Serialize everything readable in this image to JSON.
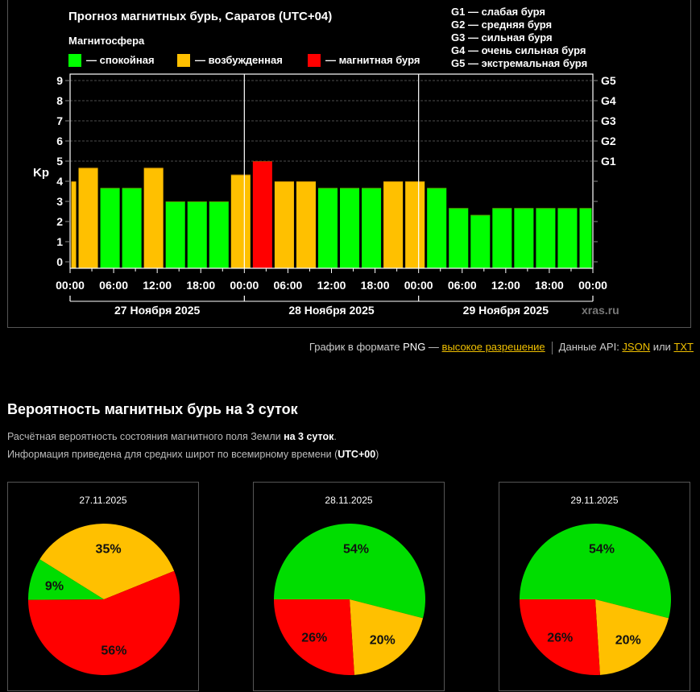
{
  "chart_data": [
    {
      "type": "bar",
      "title": "Прогноз магнитных бурь, Саратов (UTC+04)",
      "legend_title": "Магнитосфера",
      "legend": [
        {
          "label": "— спокойная",
          "color": "#00ff00"
        },
        {
          "label": "— возбужденная",
          "color": "#ffc000"
        },
        {
          "label": "— магнитная буря",
          "color": "#ff0000"
        }
      ],
      "g_legend": [
        "G1 — слабая буря",
        "G2 — средняя буря",
        "G3 — сильная буря",
        "G4 — очень сильная буря",
        "G5 — экстремальная буря"
      ],
      "ylabel": "Kp",
      "ylim": [
        0,
        9
      ],
      "yticks": [
        "0",
        "1",
        "2",
        "3",
        "4",
        "5",
        "6",
        "7",
        "8",
        "9"
      ],
      "right_ticks": [
        {
          "kp": 5,
          "label": "G1"
        },
        {
          "kp": 6,
          "label": "G2"
        },
        {
          "kp": 7,
          "label": "G3"
        },
        {
          "kp": 8,
          "label": "G4"
        },
        {
          "kp": 9,
          "label": "G5"
        }
      ],
      "xticks": [
        "00:00",
        "06:00",
        "12:00",
        "18:00",
        "00:00",
        "06:00",
        "12:00",
        "18:00",
        "00:00",
        "06:00",
        "12:00",
        "18:00",
        "00:00"
      ],
      "days": [
        "27 Ноября 2025",
        "28 Ноября 2025",
        "29 Ноября 2025"
      ],
      "hours_total": 72,
      "bar_hours": 3,
      "bar_offset_hours": -2,
      "values": [
        4,
        4.67,
        3.67,
        3.67,
        4.67,
        3,
        3,
        3,
        4.33,
        5,
        4,
        4,
        3.67,
        3.67,
        3.67,
        4,
        4,
        3.67,
        2.67,
        2.33,
        2.67,
        2.67,
        2.67,
        2.67,
        2.67
      ],
      "levels": [
        "e",
        "e",
        "q",
        "q",
        "e",
        "q",
        "q",
        "q",
        "e",
        "s",
        "e",
        "e",
        "q",
        "q",
        "q",
        "e",
        "e",
        "q",
        "q",
        "q",
        "q",
        "q",
        "q",
        "q",
        "q"
      ],
      "watermark": "xras.ru"
    },
    {
      "type": "pie",
      "title": "27.11.2025",
      "slices": [
        {
          "label": "35%",
          "value": 35,
          "color": "#ffc000"
        },
        {
          "label": "56%",
          "value": 56,
          "color": "#ff0000"
        },
        {
          "label": "9%",
          "value": 9,
          "color": "#00dd00"
        }
      ]
    },
    {
      "type": "pie",
      "title": "28.11.2025",
      "slices": [
        {
          "label": "54%",
          "value": 54,
          "color": "#00dd00"
        },
        {
          "label": "20%",
          "value": 20,
          "color": "#ffc000"
        },
        {
          "label": "26%",
          "value": 26,
          "color": "#ff0000"
        }
      ]
    },
    {
      "type": "pie",
      "title": "29.11.2025",
      "slices": [
        {
          "label": "54%",
          "value": 54,
          "color": "#00dd00"
        },
        {
          "label": "20%",
          "value": 20,
          "color": "#ffc000"
        },
        {
          "label": "26%",
          "value": 26,
          "color": "#ff0000"
        }
      ]
    }
  ],
  "colors": {
    "q": "#00ff00",
    "e": "#ffc000",
    "s": "#ff0000",
    "link": "#f0c000"
  },
  "links": {
    "png_prefix": "График в формате ",
    "png": "PNG",
    "dash": " — ",
    "hires": "высокое разрешение",
    "api": "Данные API: ",
    "json": "JSON",
    "or": " или ",
    "txt": "TXT"
  },
  "section": {
    "title": "Вероятность магнитных бурь на 3 суток",
    "line1_a": "Расчётная вероятность состояния магнитного поля Земли ",
    "line1_b": "на 3 суток",
    "line1_c": ".",
    "line2_a": "Информация приведена для средних широт по всемирному времени (",
    "line2_b": "UTC+00",
    "line2_c": ")"
  }
}
